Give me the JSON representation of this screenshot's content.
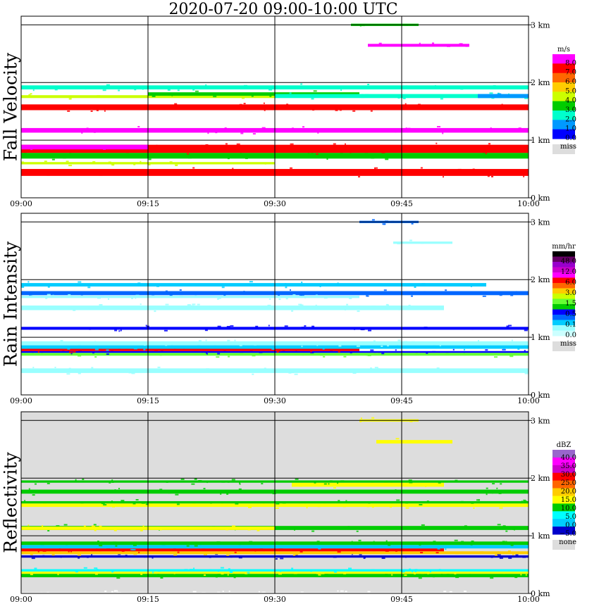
{
  "title": "2020-07-20   09:00-10:00 UTC",
  "chart_data": [
    {
      "type": "heatmap",
      "title": "Fall Velocity",
      "xlabel": "",
      "ylabel": "",
      "x_ticks": [
        "09:00",
        "09:15",
        "09:30",
        "09:45",
        "10:00"
      ],
      "y_ticks": [
        "0 km",
        "1 km",
        "2 km",
        "3 km"
      ],
      "xlim_minutes": [
        0,
        60
      ],
      "ylim_km": [
        0,
        3.15
      ],
      "grid": true,
      "legend_position": "right",
      "colorbar": {
        "unit": "m/s",
        "labels": [
          "8.0",
          "7.0",
          "6.0",
          "5.0",
          "4.0",
          "3.0",
          "2.0",
          "1.0",
          "0.0"
        ],
        "colors": [
          "#ff00ff",
          "#ff0000",
          "#ff6600",
          "#ffcc00",
          "#ccff00",
          "#00cc00",
          "#00ffcc",
          "#0099ff",
          "#0000ff"
        ],
        "miss_label": "miss",
        "miss_color": "#dddddd"
      },
      "background_color": "#ffffff",
      "layers": [
        {
          "t0": 0,
          "t1": 60,
          "z0": 0.38,
          "z1": 0.5,
          "color": "#ff0000"
        },
        {
          "t0": 0,
          "t1": 60,
          "z0": 0.68,
          "z1": 0.78,
          "color": "#00cc00"
        },
        {
          "t0": 0,
          "t1": 60,
          "z0": 0.78,
          "z1": 0.92,
          "color": "#ff0000"
        },
        {
          "t0": 0,
          "t1": 15,
          "z0": 0.84,
          "z1": 0.92,
          "color": "#ff00ff"
        },
        {
          "t0": 0,
          "t1": 60,
          "z0": 1.13,
          "z1": 1.21,
          "color": "#ff00ff"
        },
        {
          "t0": 0,
          "t1": 60,
          "z0": 1.52,
          "z1": 1.62,
          "color": "#ff0000"
        },
        {
          "t0": 0,
          "t1": 30,
          "z0": 1.73,
          "z1": 1.78,
          "color": "#ccff00"
        },
        {
          "t0": 15,
          "t1": 40,
          "z0": 1.77,
          "z1": 1.83,
          "color": "#00cc00"
        },
        {
          "t0": 30,
          "t1": 60,
          "z0": 1.73,
          "z1": 1.8,
          "color": "#00ffcc"
        },
        {
          "t0": 54,
          "t1": 60,
          "z0": 1.73,
          "z1": 1.8,
          "color": "#0099ff"
        },
        {
          "t0": 0,
          "t1": 60,
          "z0": 1.88,
          "z1": 1.95,
          "color": "#00ffcc"
        },
        {
          "t0": 41,
          "t1": 53,
          "z0": 2.62,
          "z1": 2.67,
          "color": "#ff00ff"
        },
        {
          "t0": 39,
          "t1": 47,
          "z0": 2.98,
          "z1": 3.02,
          "color": "#00cc00"
        },
        {
          "t0": 0,
          "t1": 30,
          "z0": 0.58,
          "z1": 0.62,
          "color": "#ccff00"
        }
      ]
    },
    {
      "type": "heatmap",
      "title": "Rain Intensity",
      "xlabel": "",
      "ylabel": "",
      "x_ticks": [
        "09:00",
        "09:15",
        "09:30",
        "09:45",
        "10:00"
      ],
      "y_ticks": [
        "0 km",
        "1 km",
        "2 km",
        "3 km"
      ],
      "xlim_minutes": [
        0,
        60
      ],
      "ylim_km": [
        0,
        3.15
      ],
      "grid": true,
      "legend_position": "right",
      "colorbar": {
        "unit": "mm/hr",
        "labels": [
          "48.0",
          "12.0",
          "6.0",
          "3.0",
          "1.5",
          "0.5",
          "0.1",
          "0.0"
        ],
        "colors": [
          "#000000",
          "#660066",
          "#9900cc",
          "#cc00cc",
          "#ff00ff",
          "#ff0000",
          "#ff6600",
          "#ffcc00",
          "#ccff00",
          "#66ff33",
          "#00cc00",
          "#0000ff",
          "#0066ff",
          "#00ccff",
          "#99ffff",
          "#ccffff"
        ],
        "miss_label": "miss",
        "miss_color": "#dddddd"
      },
      "background_color": "#ffffff",
      "layers": [
        {
          "t0": 0,
          "t1": 60,
          "z0": 0.38,
          "z1": 0.46,
          "color": "#99ffff"
        },
        {
          "t0": 0,
          "t1": 60,
          "z0": 0.68,
          "z1": 0.73,
          "color": "#66ff33"
        },
        {
          "t0": 0,
          "t1": 60,
          "z0": 0.73,
          "z1": 0.76,
          "color": "#0000ff"
        },
        {
          "t0": 0,
          "t1": 40,
          "z0": 0.76,
          "z1": 0.8,
          "color": "#ff0000"
        },
        {
          "t0": 0,
          "t1": 60,
          "z0": 0.8,
          "z1": 0.86,
          "color": "#00ccff"
        },
        {
          "t0": 0,
          "t1": 60,
          "z0": 0.86,
          "z1": 0.93,
          "color": "#99ffff"
        },
        {
          "t0": 0,
          "t1": 60,
          "z0": 1.13,
          "z1": 1.18,
          "color": "#0000ff"
        },
        {
          "t0": 0,
          "t1": 50,
          "z0": 1.47,
          "z1": 1.55,
          "color": "#99ffff"
        },
        {
          "t0": 0,
          "t1": 60,
          "z0": 1.73,
          "z1": 1.8,
          "color": "#0066ff"
        },
        {
          "t0": 0,
          "t1": 40,
          "z0": 1.68,
          "z1": 1.72,
          "color": "#99ffff"
        },
        {
          "t0": 0,
          "t1": 55,
          "z0": 1.88,
          "z1": 1.94,
          "color": "#00ccff"
        },
        {
          "t0": 44,
          "t1": 51,
          "z0": 2.62,
          "z1": 2.66,
          "color": "#99ffff"
        },
        {
          "t0": 40,
          "t1": 47,
          "z0": 2.98,
          "z1": 3.02,
          "color": "#0066ff"
        }
      ]
    },
    {
      "type": "heatmap",
      "title": "Reflectivity",
      "xlabel": "",
      "ylabel": "",
      "x_ticks": [
        "09:00",
        "09:15",
        "09:30",
        "09:45",
        "10:00"
      ],
      "y_ticks": [
        "0 km",
        "1 km",
        "2 km",
        "3 km"
      ],
      "xlim_minutes": [
        0,
        60
      ],
      "ylim_km": [
        0,
        3.15
      ],
      "grid": true,
      "legend_position": "right",
      "colorbar": {
        "unit": "dBZ",
        "labels": [
          "40.0",
          "35.0",
          "30.0",
          "25.0",
          "20.0",
          "15.0",
          "10.0",
          "5.0",
          "0.0",
          "−5.0"
        ],
        "colors": [
          "#9966cc",
          "#ff00ff",
          "#cc00cc",
          "#ff0000",
          "#ff6600",
          "#ffcc00",
          "#ffff00",
          "#00cc00",
          "#00ffff",
          "#00ccff",
          "#0000cc"
        ],
        "miss_label": "none",
        "miss_color": "#dddddd"
      },
      "background_color": "#dddddd",
      "layers": [
        {
          "t0": 0,
          "t1": 60,
          "z0": 0.28,
          "z1": 0.34,
          "color": "#00cc00"
        },
        {
          "t0": 0,
          "t1": 60,
          "z0": 0.34,
          "z1": 0.38,
          "color": "#ffff00"
        },
        {
          "t0": 0,
          "t1": 60,
          "z0": 0.38,
          "z1": 0.42,
          "color": "#00ffff"
        },
        {
          "t0": 0,
          "t1": 60,
          "z0": 0.62,
          "z1": 0.66,
          "color": "#0000cc"
        },
        {
          "t0": 0,
          "t1": 60,
          "z0": 0.68,
          "z1": 0.73,
          "color": "#ffcc00"
        },
        {
          "t0": 0,
          "t1": 50,
          "z0": 0.73,
          "z1": 0.78,
          "color": "#ff0000"
        },
        {
          "t0": 0,
          "t1": 60,
          "z0": 0.78,
          "z1": 0.84,
          "color": "#00ccff"
        },
        {
          "t0": 0,
          "t1": 60,
          "z0": 0.84,
          "z1": 0.9,
          "color": "#00cc00"
        },
        {
          "t0": 0,
          "t1": 60,
          "z0": 1.1,
          "z1": 1.17,
          "color": "#00cc00"
        },
        {
          "t0": 0,
          "t1": 30,
          "z0": 1.1,
          "z1": 1.16,
          "color": "#ffff00"
        },
        {
          "t0": 0,
          "t1": 60,
          "z0": 1.5,
          "z1": 1.56,
          "color": "#ffff00"
        },
        {
          "t0": 0,
          "t1": 60,
          "z0": 1.56,
          "z1": 1.6,
          "color": "#00cc00"
        },
        {
          "t0": 0,
          "t1": 60,
          "z0": 1.73,
          "z1": 1.8,
          "color": "#00cc00"
        },
        {
          "t0": 32,
          "t1": 50,
          "z0": 1.85,
          "z1": 1.92,
          "color": "#ffff00"
        },
        {
          "t0": 0,
          "t1": 60,
          "z0": 1.92,
          "z1": 1.96,
          "color": "#00cc00"
        },
        {
          "t0": 42,
          "t1": 51,
          "z0": 2.6,
          "z1": 2.66,
          "color": "#ffff00"
        },
        {
          "t0": 40,
          "t1": 47,
          "z0": 2.98,
          "z1": 3.02,
          "color": "#ffff00"
        },
        {
          "t0": 0,
          "t1": 60,
          "z0": 0.0,
          "z1": 0.02,
          "color": "#ffffff"
        }
      ]
    }
  ]
}
